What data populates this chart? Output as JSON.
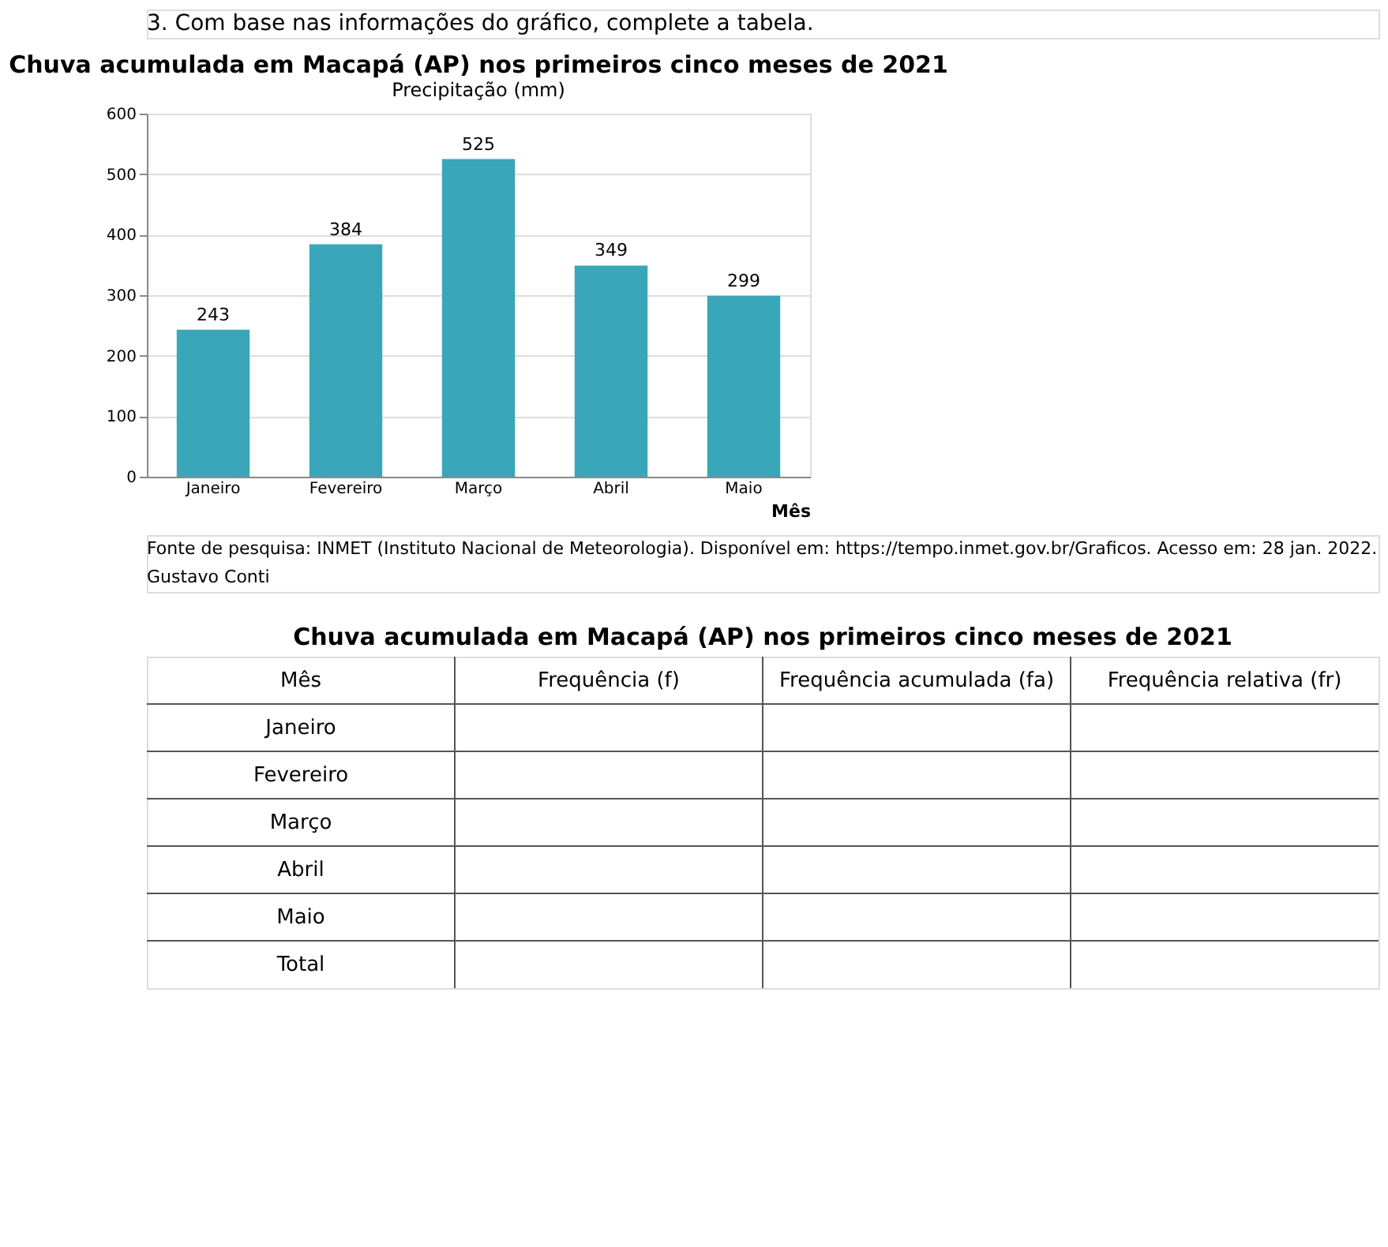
{
  "chart_data": [
    {
      "type": "bar",
      "title": "Chuva acumulada em Macapá (AP) nos primeiros cinco meses de 2021",
      "ylabel": "Precipitação (mm)",
      "xlabel": "Mês",
      "categories": [
        "Janeiro",
        "Fevereiro",
        "Março",
        "Abril",
        "Maio"
      ],
      "values": [
        243,
        384,
        525,
        349,
        299
      ],
      "color": "#3aa6b9",
      "ylim": [
        0,
        600
      ],
      "yticks": [
        0,
        100,
        200,
        300,
        400,
        500,
        600
      ],
      "grid": "y",
      "data_labels": true,
      "annotations": [
        "3. Com base nas informações do gráfico, complete a tabela.",
        "Fonte de pesquisa: INMET (Instituto Nacional de Meteorologia). Disponível em: https://tempo.inmet.gov.br/Graficos. Acesso em: 28 jan. 2022.",
        "Gustavo Conti"
      ]
    },
    {
      "type": "other",
      "title": "Chuva acumulada em Macapá (AP) nos primeiros cinco meses de 2021",
      "categories": [
        "Mês",
        "Frequência (f)",
        "Frequência acumulada (fa)",
        "Frequência relativa (fr)"
      ],
      "y_categories": [
        "Janeiro",
        "Fevereiro",
        "Março",
        "Abril",
        "Maio",
        "Total"
      ]
    }
  ]
}
